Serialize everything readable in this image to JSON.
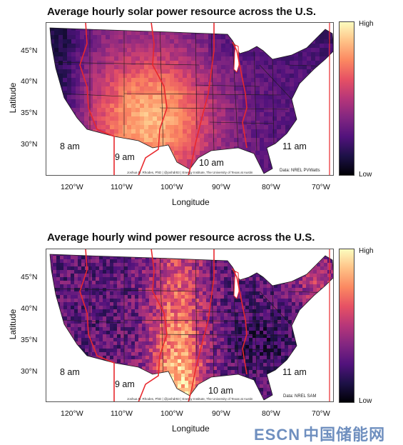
{
  "colors": {
    "scale": [
      "#000004",
      "#1d1147",
      "#51127c",
      "#822681",
      "#b63679",
      "#e65164",
      "#fb8861",
      "#fec287",
      "#fcfdbf"
    ],
    "timezone_line": "#e8282d",
    "state_border": "#1a1a1a"
  },
  "watermark": {
    "latin": "ESCN",
    "cjk": "中国储能网"
  },
  "maps": [
    {
      "id": "solar",
      "title": "Average hourly solar power resource across the U.S.",
      "xlabel": "Longitude",
      "ylabel": "Latitude",
      "lat_ticks": [
        "45°N",
        "40°N",
        "35°N",
        "30°N"
      ],
      "lon_ticks": [
        "120°W",
        "110°W",
        "100°W",
        "90°W",
        "80°W",
        "70°W"
      ],
      "colorbar": {
        "high": "High",
        "low": "Low"
      },
      "timezones": [
        "8 am",
        "9 am",
        "10 am",
        "11 am"
      ],
      "credit": "Joshua D. Rhodes, PhD | @joshdr83 | Energy Institute, The University of Texas at Austin",
      "source": "Data: NREL PVWatts"
    },
    {
      "id": "wind",
      "title": "Average hourly wind power resource across the U.S.",
      "xlabel": "Longitude",
      "ylabel": "Latitude",
      "lat_ticks": [
        "45°N",
        "40°N",
        "35°N",
        "30°N"
      ],
      "lon_ticks": [
        "120°W",
        "110°W",
        "100°W",
        "90°W",
        "80°W",
        "70°W"
      ],
      "colorbar": {
        "high": "High",
        "low": "Low"
      },
      "timezones": [
        "8 am",
        "9 am",
        "10 am",
        "11 am"
      ],
      "credit": "Joshua D. Rhodes, PhD | @joshdr83 | Energy Institute, The University of Texas at Austin",
      "source": "Data: NREL SAM"
    }
  ]
}
